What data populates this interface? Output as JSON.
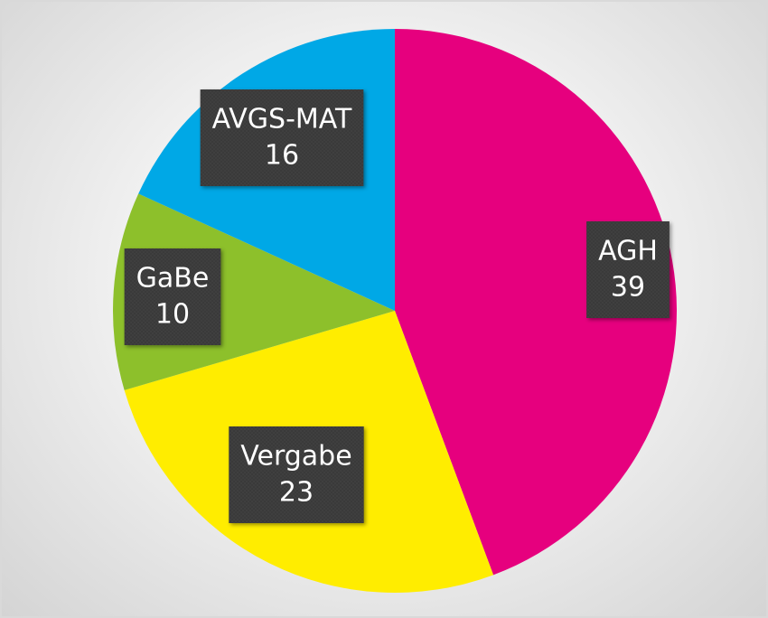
{
  "chart_data": {
    "type": "pie",
    "categories": [
      "AGH",
      "Vergabe",
      "GaBe",
      "AVGS-MAT"
    ],
    "values": [
      39,
      23,
      10,
      16
    ],
    "colors": [
      "#e6007e",
      "#ffed00",
      "#8dc02b",
      "#00a8e6"
    ]
  }
}
